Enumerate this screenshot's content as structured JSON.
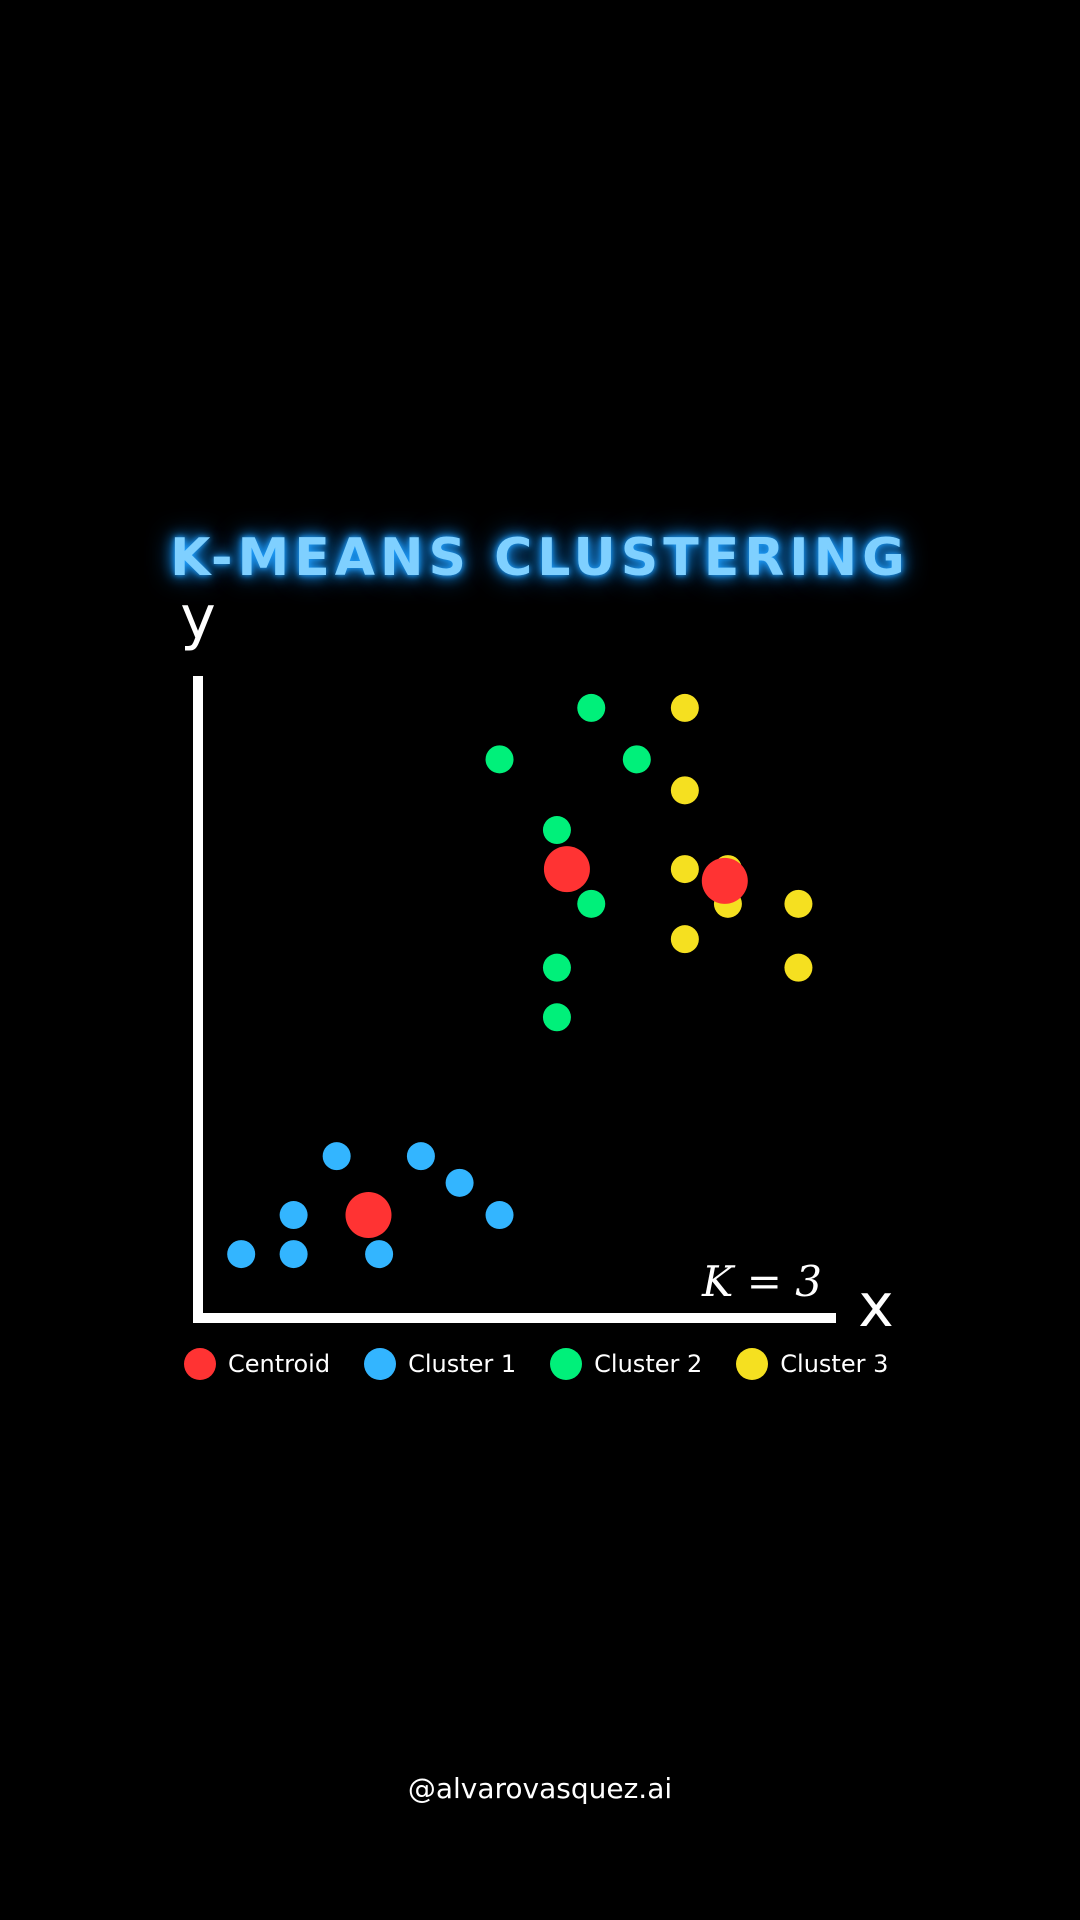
{
  "title": "K-MEANS CLUSTERING",
  "handle": "@alvarovasquez.ai",
  "chart_data": {
    "type": "scatter",
    "title": "K-MEANS CLUSTERING",
    "xlabel": "x",
    "ylabel": "y",
    "annotation": "K = 3",
    "grid": false,
    "xlim": [
      0,
      100
    ],
    "ylim": [
      0,
      100
    ],
    "legend": {
      "placement": "bottom",
      "entries": [
        {
          "key": "centroid",
          "label": "Centroid",
          "color": "#ff3333"
        },
        {
          "key": "c1",
          "label": "Cluster 1",
          "color": "#33b5ff"
        },
        {
          "key": "c2",
          "label": "Cluster 2",
          "color": "#00f07a"
        },
        {
          "key": "c3",
          "label": "Cluster 3",
          "color": "#f5e020"
        }
      ]
    },
    "series": [
      {
        "key": "c1",
        "name": "Cluster 1",
        "color": "#33b5ff",
        "points": [
          {
            "x": 5,
            "y": 7.4
          },
          {
            "x": 13.4,
            "y": 7.4
          },
          {
            "x": 13.4,
            "y": 13.7
          },
          {
            "x": 20.3,
            "y": 23.2
          },
          {
            "x": 27.1,
            "y": 7.4
          },
          {
            "x": 33.8,
            "y": 23.2
          },
          {
            "x": 40,
            "y": 18.9
          },
          {
            "x": 46.4,
            "y": 13.7
          }
        ]
      },
      {
        "key": "c2",
        "name": "Cluster 2",
        "color": "#00f07a",
        "points": [
          {
            "x": 46.4,
            "y": 87.2
          },
          {
            "x": 55.6,
            "y": 75.8
          },
          {
            "x": 55.6,
            "y": 45.6
          },
          {
            "x": 55.6,
            "y": 53.6
          },
          {
            "x": 61.1,
            "y": 63.9
          },
          {
            "x": 61.1,
            "y": 95.5
          },
          {
            "x": 68.4,
            "y": 87.2
          }
        ]
      },
      {
        "key": "c3",
        "name": "Cluster 3",
        "color": "#f5e020",
        "points": [
          {
            "x": 76.1,
            "y": 95.5
          },
          {
            "x": 76.1,
            "y": 82.2
          },
          {
            "x": 76.1,
            "y": 69.5
          },
          {
            "x": 76.1,
            "y": 58.2
          },
          {
            "x": 83,
            "y": 69.5
          },
          {
            "x": 83,
            "y": 63.9
          },
          {
            "x": 94.3,
            "y": 63.9
          },
          {
            "x": 94.3,
            "y": 53.6
          }
        ]
      }
    ],
    "centroids": [
      {
        "x": 25.4,
        "y": 13.7
      },
      {
        "x": 57.2,
        "y": 69.5
      },
      {
        "x": 82.5,
        "y": 67.6
      }
    ]
  }
}
